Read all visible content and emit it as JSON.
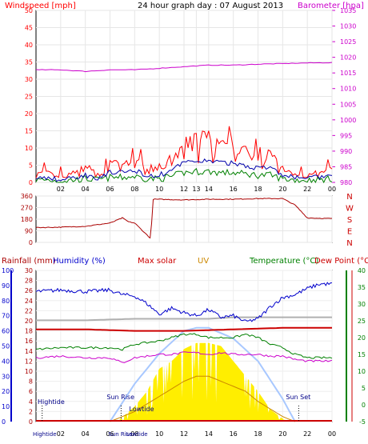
{
  "title": "24 hour graph day : 07 August 2013",
  "colors": {
    "wind": "#ff0000",
    "wind_avg": "#0000aa",
    "wind_gust2": "#008000",
    "barometer": "#cc00cc",
    "direction": "#aa0000",
    "rainfall": "#aa0000",
    "humidity": "#0000cc",
    "solar": "#b0b0b0",
    "max_solar": "#cc0000",
    "uv": "#cc8800",
    "temperature": "#008000",
    "dewpoint": "#cc0000",
    "solar_fill": "#ffee00",
    "sun_curve": "#a8c8ff"
  },
  "chart_data": [
    {
      "type": "line",
      "panel": "wind_barometer",
      "left_axis_label": "Windspeed [mph]",
      "right_axis_label": "Barometer [hpa]",
      "left_ticks": [
        "0",
        "5",
        "10",
        "15",
        "20",
        "25",
        "30",
        "35",
        "40",
        "45",
        "50"
      ],
      "right_ticks": [
        "980",
        "985",
        "990",
        "995",
        "1000",
        "1005",
        "1010",
        "1015",
        "1020",
        "1025",
        "1030",
        "1035"
      ],
      "left_range": [
        0,
        50
      ],
      "right_range": [
        980,
        1035
      ],
      "x_ticks": [
        "02",
        "04",
        "06",
        "08",
        "10",
        "12",
        "13",
        "14",
        "16",
        "18",
        "20",
        "22",
        "00"
      ],
      "x_hours": [
        2,
        4,
        6,
        8,
        10,
        12,
        13,
        14,
        16,
        18,
        20,
        22,
        24
      ],
      "grid": true,
      "series": [
        {
          "name": "Windspeed",
          "axis": "left",
          "x": [
            0,
            1,
            2,
            3,
            4,
            5,
            6,
            7,
            8,
            9,
            10,
            11,
            12,
            13,
            14,
            15,
            16,
            17,
            18,
            19,
            20,
            21,
            22,
            23,
            24
          ],
          "values": [
            2,
            2,
            1,
            2,
            3,
            2,
            4,
            4,
            5,
            3,
            3,
            5,
            8,
            9,
            9,
            8,
            8,
            7,
            6,
            6,
            3,
            2,
            2,
            2,
            3
          ]
        },
        {
          "name": "Barometer",
          "axis": "right",
          "x": [
            0,
            2,
            4,
            6,
            8,
            10,
            12,
            14,
            16,
            18,
            20,
            22,
            24
          ],
          "values": [
            1016,
            1016,
            1015.5,
            1016,
            1016,
            1016.5,
            1017,
            1017.5,
            1017.5,
            1017.8,
            1018,
            1018.2,
            1018.3
          ]
        }
      ]
    },
    {
      "type": "line",
      "panel": "wind_direction",
      "left_ticks": [
        "0",
        "90",
        "180",
        "270",
        "360"
      ],
      "right_ticks": [
        "N",
        "W",
        "S",
        "E",
        "N"
      ],
      "range": [
        0,
        360
      ],
      "series": [
        {
          "name": "Direction",
          "x": [
            0,
            2,
            4,
            6,
            7,
            7.5,
            8,
            9.3,
            9.5,
            12,
            14,
            16,
            18,
            20,
            21,
            22,
            24
          ],
          "values": [
            115,
            118,
            125,
            150,
            190,
            160,
            150,
            30,
            335,
            330,
            335,
            335,
            340,
            340,
            290,
            190,
            185
          ]
        }
      ]
    },
    {
      "type": "line",
      "panel": "rain_temp_solar",
      "legend": [
        "Rainfall (mm)",
        "Humidity (%)",
        "Max solar",
        "UV",
        "Temperature (°C)",
        "Dew Point (°C)"
      ],
      "humidity_ticks": [
        "0",
        "10",
        "20",
        "30",
        "40",
        "50",
        "60",
        "70",
        "80",
        "90",
        "100"
      ],
      "rain_ticks": [
        "0",
        "2",
        "4",
        "6",
        "8",
        "10",
        "12",
        "14",
        "16",
        "18",
        "20",
        "22",
        "24",
        "26",
        "28",
        "30"
      ],
      "temp_ticks": [
        "-5",
        "0",
        "5",
        "10",
        "15",
        "20",
        "25",
        "30",
        "35",
        "40"
      ],
      "x_ticks": [
        "02",
        "04",
        "06",
        "08",
        "10",
        "12",
        "14",
        "16",
        "18",
        "20",
        "22",
        "00"
      ],
      "x_hours": [
        2,
        4,
        6,
        8,
        10,
        12,
        14,
        16,
        18,
        20,
        22,
        24
      ],
      "annotations": {
        "hightide": "Hightide",
        "sunrise": "Sun Rise",
        "lowtide": "Lowtide",
        "sunset": "Sun Set",
        "bottom_labels": [
          "Hightide",
          "Sun Rise",
          "Lowtide"
        ]
      },
      "series": [
        {
          "name": "Humidity",
          "axis": "humidity",
          "x": [
            0,
            2,
            4,
            6,
            7,
            8,
            9,
            10,
            11,
            12,
            13,
            14,
            15,
            16,
            17,
            18,
            19,
            20,
            21,
            22,
            23,
            24
          ],
          "values": [
            86,
            87,
            86,
            87,
            84,
            83,
            78,
            71,
            75,
            72,
            70,
            74,
            69,
            70,
            66,
            68,
            76,
            82,
            84,
            88,
            91,
            91
          ]
        },
        {
          "name": "Solar",
          "axis": "humidity",
          "x": [
            0,
            4,
            8,
            10,
            12,
            14,
            16,
            18,
            20,
            22,
            24
          ],
          "values": [
            67,
            67,
            68,
            68,
            68,
            68,
            69,
            69,
            69,
            69,
            69
          ]
        },
        {
          "name": "Max solar",
          "axis": "humidity",
          "x": [
            0,
            4,
            8,
            12,
            16,
            20,
            24
          ],
          "values": [
            61,
            61,
            60,
            60,
            61,
            62,
            62
          ]
        },
        {
          "name": "Temperature",
          "axis": "temp",
          "x": [
            0,
            2,
            4,
            6,
            7,
            8,
            10,
            11,
            12,
            13,
            14,
            15,
            16,
            17,
            18,
            19,
            20,
            21,
            22,
            24
          ],
          "values": [
            16.5,
            17,
            17,
            17,
            16.5,
            18,
            19,
            20,
            21,
            21,
            20,
            20,
            20,
            21,
            20,
            18,
            17,
            15,
            14,
            14
          ]
        },
        {
          "name": "Dew Point",
          "axis": "temp",
          "x": [
            0,
            2,
            4,
            6,
            7,
            8,
            10,
            11,
            12,
            13,
            14,
            15,
            16,
            17,
            18,
            19,
            20,
            21,
            22,
            24
          ],
          "values": [
            14,
            14.5,
            14,
            14,
            12.5,
            14,
            15,
            15,
            15.5,
            15.5,
            15,
            15.5,
            15,
            15,
            15,
            14.5,
            14.5,
            13.5,
            13,
            13
          ]
        },
        {
          "name": "UV",
          "axis": "rain",
          "x": [
            6,
            8,
            10,
            12,
            13,
            14,
            15,
            16,
            17,
            18,
            20,
            21
          ],
          "values": [
            0,
            2,
            5,
            8,
            9,
            9,
            8,
            7,
            6,
            4,
            1,
            0
          ]
        },
        {
          "name": "Solar radiation fill",
          "axis": "humidity",
          "x": [
            6.6,
            8,
            9,
            10,
            11,
            12,
            13,
            14,
            15,
            16,
            17,
            18,
            19,
            20,
            20.5
          ],
          "values": [
            0,
            10,
            20,
            35,
            40,
            48,
            52,
            52,
            50,
            40,
            30,
            20,
            8,
            2,
            0
          ]
        },
        {
          "name": "Sun curve",
          "axis": "humidity",
          "x": [
            6,
            8,
            10,
            12,
            13,
            14,
            16,
            18,
            20,
            21
          ],
          "values": [
            0,
            25,
            45,
            60,
            62,
            62,
            55,
            40,
            15,
            0
          ]
        }
      ]
    }
  ]
}
